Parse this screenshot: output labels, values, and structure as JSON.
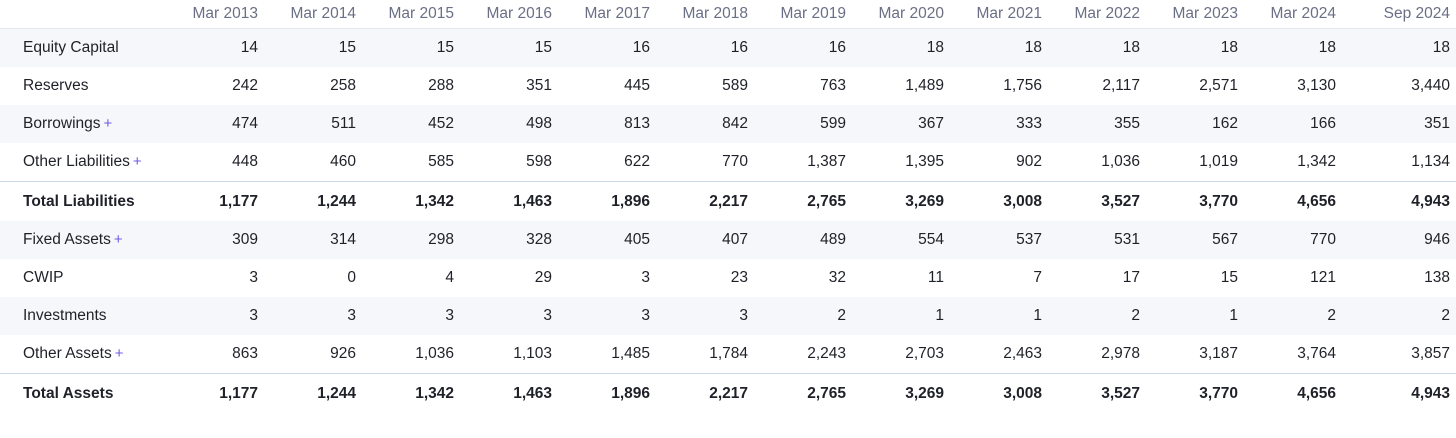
{
  "table": {
    "periods": [
      "Mar 2013",
      "Mar 2014",
      "Mar 2015",
      "Mar 2016",
      "Mar 2017",
      "Mar 2018",
      "Mar 2019",
      "Mar 2020",
      "Mar 2021",
      "Mar 2022",
      "Mar 2023",
      "Mar 2024",
      "Sep 2024"
    ],
    "expand_symbol": "+",
    "rows": [
      {
        "label": "Equity Capital",
        "expandable": false,
        "total": false,
        "values": [
          "14",
          "15",
          "15",
          "15",
          "16",
          "16",
          "16",
          "18",
          "18",
          "18",
          "18",
          "18",
          "18"
        ]
      },
      {
        "label": "Reserves",
        "expandable": false,
        "total": false,
        "values": [
          "242",
          "258",
          "288",
          "351",
          "445",
          "589",
          "763",
          "1,489",
          "1,756",
          "2,117",
          "2,571",
          "3,130",
          "3,440"
        ]
      },
      {
        "label": "Borrowings",
        "expandable": true,
        "total": false,
        "values": [
          "474",
          "511",
          "452",
          "498",
          "813",
          "842",
          "599",
          "367",
          "333",
          "355",
          "162",
          "166",
          "351"
        ]
      },
      {
        "label": "Other Liabilities",
        "expandable": true,
        "total": false,
        "values": [
          "448",
          "460",
          "585",
          "598",
          "622",
          "770",
          "1,387",
          "1,395",
          "902",
          "1,036",
          "1,019",
          "1,342",
          "1,134"
        ]
      },
      {
        "label": "Total Liabilities",
        "expandable": false,
        "total": true,
        "values": [
          "1,177",
          "1,244",
          "1,342",
          "1,463",
          "1,896",
          "2,217",
          "2,765",
          "3,269",
          "3,008",
          "3,527",
          "3,770",
          "4,656",
          "4,943"
        ]
      },
      {
        "label": "Fixed Assets",
        "expandable": true,
        "total": false,
        "values": [
          "309",
          "314",
          "298",
          "328",
          "405",
          "407",
          "489",
          "554",
          "537",
          "531",
          "567",
          "770",
          "946"
        ]
      },
      {
        "label": "CWIP",
        "expandable": false,
        "total": false,
        "values": [
          "3",
          "0",
          "4",
          "29",
          "3",
          "23",
          "32",
          "11",
          "7",
          "17",
          "15",
          "121",
          "138"
        ]
      },
      {
        "label": "Investments",
        "expandable": false,
        "total": false,
        "values": [
          "3",
          "3",
          "3",
          "3",
          "3",
          "3",
          "2",
          "1",
          "1",
          "2",
          "1",
          "2",
          "2"
        ]
      },
      {
        "label": "Other Assets",
        "expandable": true,
        "total": false,
        "values": [
          "863",
          "926",
          "1,036",
          "1,103",
          "1,485",
          "1,784",
          "2,243",
          "2,703",
          "2,463",
          "2,978",
          "3,187",
          "3,764",
          "3,857"
        ]
      },
      {
        "label": "Total Assets",
        "expandable": false,
        "total": true,
        "values": [
          "1,177",
          "1,244",
          "1,342",
          "1,463",
          "1,896",
          "2,217",
          "2,765",
          "3,269",
          "3,008",
          "3,527",
          "3,770",
          "4,656",
          "4,943"
        ]
      }
    ]
  }
}
